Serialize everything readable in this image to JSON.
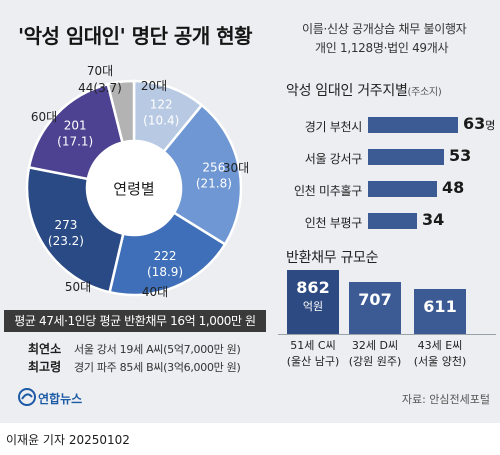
{
  "title": "'악성 임대인' 명단 공개 현황",
  "subtitle_line1": "이름·신상 공개상습 채무 불이행자",
  "subtitle_line2": "개인 1,128명·법인 49개사",
  "chart_data": [
    {
      "type": "pie",
      "center_label": "연령별",
      "unit": "명",
      "slices": [
        {
          "label": "20대",
          "value": 122,
          "percent": 10.4,
          "color": "#b8c9e3"
        },
        {
          "label": "30대",
          "value": 256,
          "percent": 21.8,
          "color": "#6f97d3"
        },
        {
          "label": "40대",
          "value": 222,
          "percent": 18.9,
          "color": "#3f6fb8"
        },
        {
          "label": "50대",
          "value": 273,
          "percent": 23.2,
          "color": "#2a4a86"
        },
        {
          "label": "60대",
          "value": 201,
          "percent": 17.1,
          "color": "#4d4291"
        },
        {
          "label": "70대",
          "value": 44,
          "percent": 3.7,
          "color": "#b3b3b3"
        }
      ]
    },
    {
      "type": "bar",
      "title": "악성 임대인 거주지별",
      "title_note": "(주소지)",
      "unit": "명",
      "categories": [
        "경기 부천시",
        "서울 강서구",
        "인천 미추홀구",
        "인천 부평구"
      ],
      "values": [
        63,
        53,
        48,
        34
      ]
    },
    {
      "type": "bar",
      "title": "반환채무 규모순",
      "categories": [
        "51세 C씨",
        "32세 D씨",
        "43세 E씨"
      ],
      "places": [
        "(울산 남구)",
        "(강원 원주)",
        "(서울 양천)"
      ],
      "values": [
        862,
        707,
        611
      ],
      "value_unit": "억원"
    }
  ],
  "average_text": "평균 47세·1인당 평균 반환채무 16억 1,000만 원",
  "youngest_label": "최연소",
  "youngest_text": "서울 강서 19세 A씨(5억7,000만 원)",
  "oldest_label": "최고령",
  "oldest_text": "경기 파주 85세 B씨(3억6,000만 원)",
  "logo_text": "연합뉴스",
  "source": "자료: 안심전세포털",
  "credit": "이재윤 기자  20250102"
}
